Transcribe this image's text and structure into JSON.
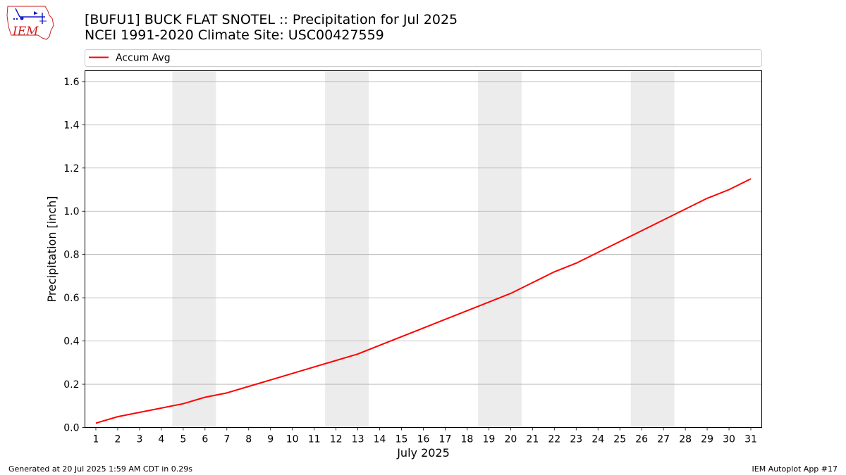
{
  "title": "[BUFU1] BUCK FLAT SNOTEL :: Precipitation for Jul 2025",
  "subtitle": "NCEI 1991-2020 Climate Site: USC00427559",
  "logo_text": "IEM",
  "footer_left": "Generated at 20 Jul 2025 1:59 AM CDT in 0.29s",
  "footer_right": "IEM Autoplot App #17",
  "colors": {
    "line": "#ff0000",
    "weekend_band": "#ececec",
    "grid": "#b0b0b0",
    "logo_red": "#cc2222",
    "logo_blue": "#1a1acc"
  },
  "chart_data": {
    "type": "line",
    "xlabel": "July 2025",
    "ylabel": "Precipitation [inch]",
    "xlim": [
      0.5,
      31.5
    ],
    "ylim": [
      0,
      1.65
    ],
    "yticks": [
      0.0,
      0.2,
      0.4,
      0.6,
      0.8,
      1.0,
      1.2,
      1.4,
      1.6
    ],
    "ytick_labels": [
      "0.0",
      "0.2",
      "0.4",
      "0.6",
      "0.8",
      "1.0",
      "1.2",
      "1.4",
      "1.6"
    ],
    "x": [
      1,
      2,
      3,
      4,
      5,
      6,
      7,
      8,
      9,
      10,
      11,
      12,
      13,
      14,
      15,
      16,
      17,
      18,
      19,
      20,
      21,
      22,
      23,
      24,
      25,
      26,
      27,
      28,
      29,
      30,
      31
    ],
    "xtick_labels": [
      "1",
      "2",
      "3",
      "4",
      "5",
      "6",
      "7",
      "8",
      "9",
      "10",
      "11",
      "12",
      "13",
      "14",
      "15",
      "16",
      "17",
      "18",
      "19",
      "20",
      "21",
      "22",
      "23",
      "24",
      "25",
      "26",
      "27",
      "28",
      "29",
      "30",
      "31"
    ],
    "grid": "horizontal",
    "legend_position": "top",
    "weekend_spans": [
      [
        5,
        6
      ],
      [
        12,
        13
      ],
      [
        19,
        20
      ],
      [
        26,
        27
      ]
    ],
    "series": [
      {
        "name": "Accum Avg",
        "values": [
          0.02,
          0.05,
          0.07,
          0.09,
          0.11,
          0.14,
          0.16,
          0.19,
          0.22,
          0.25,
          0.28,
          0.31,
          0.34,
          0.38,
          0.42,
          0.46,
          0.5,
          0.54,
          0.58,
          0.62,
          0.67,
          0.72,
          0.76,
          0.81,
          0.86,
          0.91,
          0.96,
          1.01,
          1.06,
          1.1,
          1.15
        ]
      }
    ]
  }
}
